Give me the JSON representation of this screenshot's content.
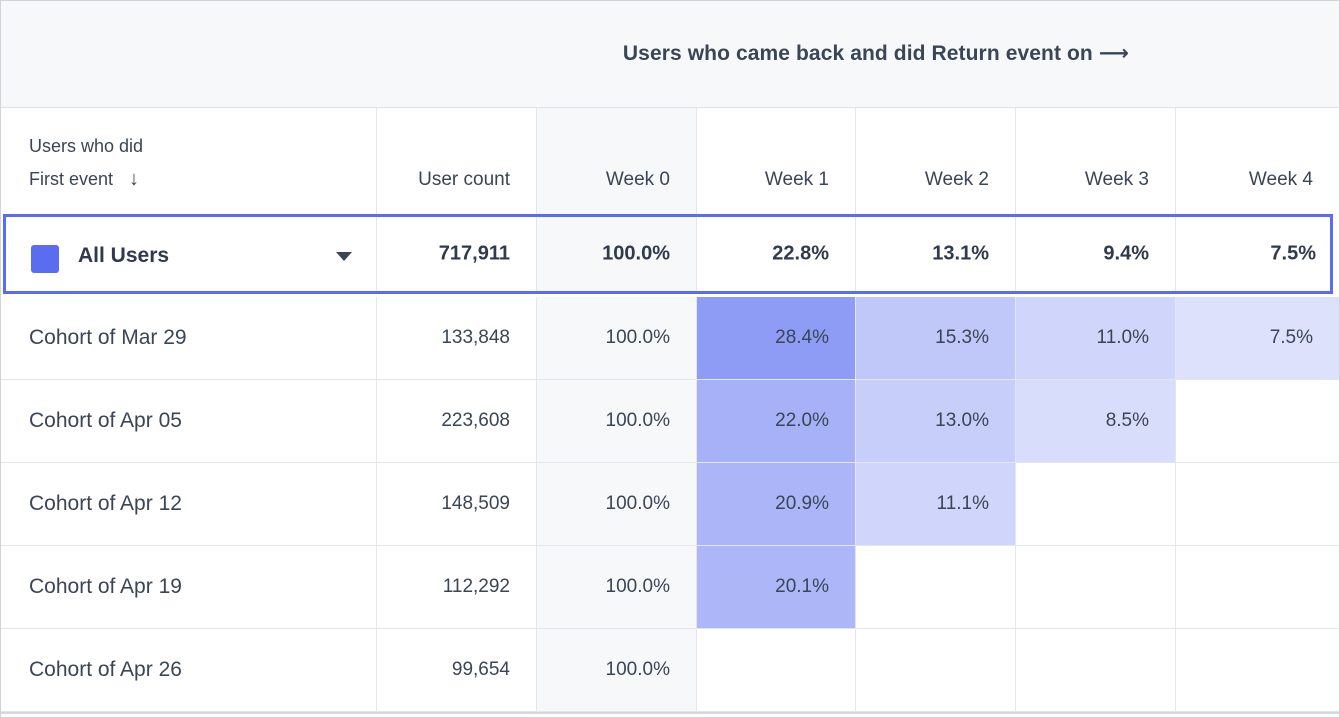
{
  "header": {
    "title": "Users who came back and did Return event on",
    "arrow": "⟶"
  },
  "columns": {
    "first_line1": "Users who did",
    "first_line2": "First event",
    "sort_icon": "↓",
    "user_count": "User count",
    "weeks": [
      "Week 0",
      "Week 1",
      "Week 2",
      "Week 3",
      "Week 4"
    ]
  },
  "summary": {
    "label": "All Users",
    "swatch_color": "#5a6df0",
    "user_count": "717,911",
    "values": [
      "100.0%",
      "22.8%",
      "13.1%",
      "9.4%",
      "7.5%"
    ]
  },
  "cohorts": [
    {
      "label": "Cohort of Mar 29",
      "user_count": "133,848",
      "values": [
        "100.0%",
        "28.4%",
        "15.3%",
        "11.0%",
        "7.5%"
      ]
    },
    {
      "label": "Cohort of Apr 05",
      "user_count": "223,608",
      "values": [
        "100.0%",
        "22.0%",
        "13.0%",
        "8.5%",
        ""
      ]
    },
    {
      "label": "Cohort of Apr 12",
      "user_count": "148,509",
      "values": [
        "100.0%",
        "20.9%",
        "11.1%",
        "",
        ""
      ]
    },
    {
      "label": "Cohort of Apr 19",
      "user_count": "112,292",
      "values": [
        "100.0%",
        "20.1%",
        "",
        "",
        ""
      ]
    },
    {
      "label": "Cohort of Apr 26",
      "user_count": "99,654",
      "values": [
        "100.0%",
        "",
        "",
        "",
        ""
      ]
    }
  ],
  "colors": {
    "accent": "#5a6df0",
    "week0_bg": "#f7f8fa",
    "heat_base": "#5a6df0"
  }
}
